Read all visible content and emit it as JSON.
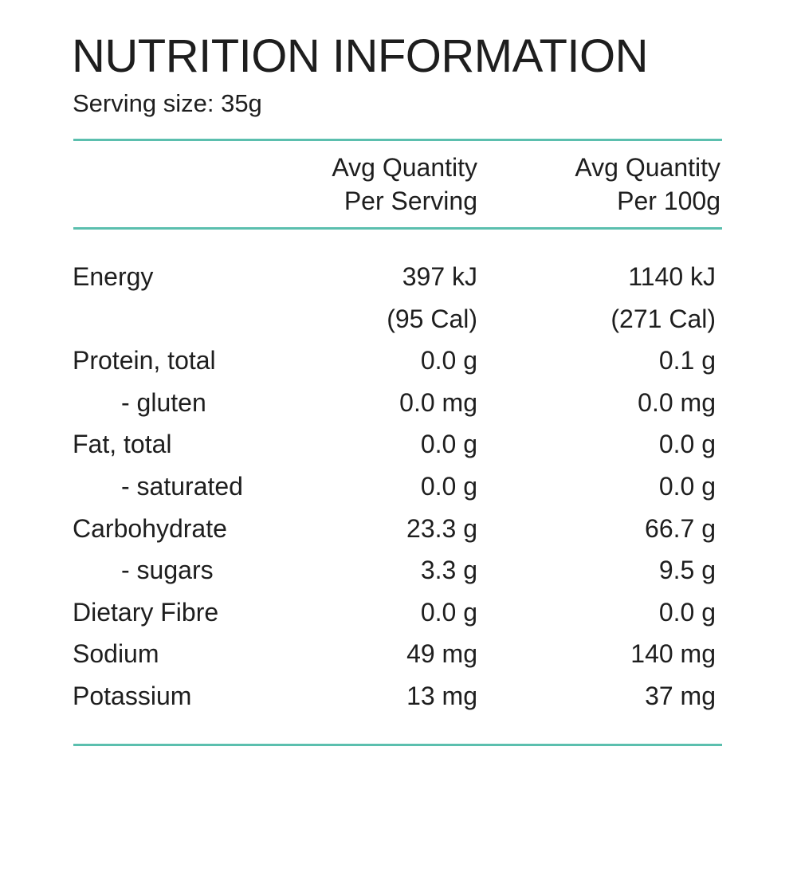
{
  "title": "NUTRITION INFORMATION",
  "serving_size": "Serving size: 35g",
  "table": {
    "header": [
      [
        "Avg Quantity",
        "Per Serving"
      ],
      [
        "Avg Quantity",
        "Per 100g"
      ]
    ],
    "rows": [
      {
        "label": "Energy",
        "indent": false,
        "serving": [
          "397 kJ",
          "(95 Cal)"
        ],
        "per100g": [
          "1140 kJ",
          "(271 Cal)"
        ]
      },
      {
        "label": "Protein, total",
        "indent": false,
        "serving": [
          "0.0 g"
        ],
        "per100g": [
          "0.1 g"
        ]
      },
      {
        "label": "- gluten",
        "indent": true,
        "serving": [
          "0.0 mg"
        ],
        "per100g": [
          "0.0 mg"
        ]
      },
      {
        "label": "Fat, total",
        "indent": false,
        "serving": [
          "0.0 g"
        ],
        "per100g": [
          "0.0 g"
        ]
      },
      {
        "label": "- saturated",
        "indent": true,
        "serving": [
          "0.0 g"
        ],
        "per100g": [
          "0.0 g"
        ]
      },
      {
        "label": "Carbohydrate",
        "indent": false,
        "serving": [
          "23.3 g"
        ],
        "per100g": [
          "66.7 g"
        ]
      },
      {
        "label": "- sugars",
        "indent": true,
        "serving": [
          "3.3 g"
        ],
        "per100g": [
          "9.5 g"
        ]
      },
      {
        "label": "Dietary Fibre",
        "indent": false,
        "serving": [
          "0.0 g"
        ],
        "per100g": [
          "0.0 g"
        ]
      },
      {
        "label": "Sodium",
        "indent": false,
        "serving": [
          "49 mg"
        ],
        "per100g": [
          "140 mg"
        ]
      },
      {
        "label": "Potassium",
        "indent": false,
        "serving": [
          "13 mg"
        ],
        "per100g": [
          "37 mg"
        ]
      }
    ]
  }
}
